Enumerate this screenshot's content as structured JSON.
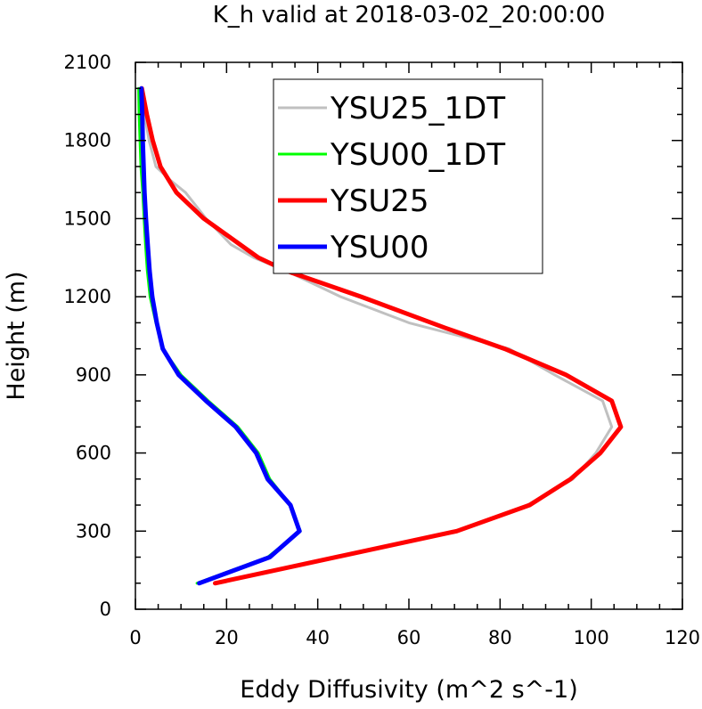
{
  "chart_data": {
    "type": "line",
    "title": "K_h valid at 2018-03-02_20:00:00",
    "xlabel": "Eddy Diffusivity (m^2 s^-1)",
    "ylabel": "Height (m)",
    "xlim": [
      0,
      120
    ],
    "ylim": [
      0,
      2100
    ],
    "xticks": [
      0,
      20,
      40,
      60,
      80,
      100,
      120
    ],
    "yticks": [
      0,
      300,
      600,
      900,
      1200,
      1500,
      1800,
      2100
    ],
    "grid": false,
    "legend_position": "top-right",
    "series": [
      {
        "name": "YSU25_1DT",
        "color": "#c0c0c0",
        "line_width": 3,
        "points": [
          [
            17.5,
            100
          ],
          [
            70.5,
            300
          ],
          [
            86,
            400
          ],
          [
            96,
            500
          ],
          [
            101,
            600
          ],
          [
            104.5,
            700
          ],
          [
            102.5,
            800
          ],
          [
            92,
            900
          ],
          [
            82,
            1000
          ],
          [
            60,
            1100
          ],
          [
            45,
            1200
          ],
          [
            33,
            1300
          ],
          [
            26,
            1350
          ],
          [
            21,
            1400
          ],
          [
            15.5,
            1500
          ],
          [
            11,
            1600
          ],
          [
            7.5,
            1650
          ],
          [
            4.5,
            1700
          ],
          [
            3,
            1800
          ],
          [
            2,
            1900
          ],
          [
            1.5,
            2000
          ]
        ]
      },
      {
        "name": "YSU00_1DT",
        "color": "#00ff00",
        "line_width": 3,
        "points": [
          [
            13.5,
            100
          ],
          [
            29,
            200
          ],
          [
            36.2,
            300
          ],
          [
            34,
            400
          ],
          [
            29.5,
            500
          ],
          [
            27,
            600
          ],
          [
            22.5,
            700
          ],
          [
            16,
            800
          ],
          [
            10,
            900
          ],
          [
            6,
            1000
          ],
          [
            4.5,
            1100
          ],
          [
            3.2,
            1200
          ],
          [
            2.6,
            1300
          ],
          [
            2.2,
            1400
          ],
          [
            1.9,
            1500
          ],
          [
            1.6,
            1600
          ],
          [
            1.2,
            1700
          ],
          [
            1,
            1800
          ],
          [
            0.8,
            1900
          ],
          [
            0.7,
            2000
          ]
        ]
      },
      {
        "name": "YSU25",
        "color": "#ff0000",
        "line_width": 5,
        "points": [
          [
            17.5,
            100
          ],
          [
            70.5,
            300
          ],
          [
            86.5,
            400
          ],
          [
            95.5,
            500
          ],
          [
            102,
            600
          ],
          [
            106.5,
            700
          ],
          [
            104.5,
            800
          ],
          [
            94.5,
            900
          ],
          [
            81,
            1000
          ],
          [
            68,
            1080
          ],
          [
            49.5,
            1200
          ],
          [
            33,
            1300
          ],
          [
            27,
            1350
          ],
          [
            23,
            1400
          ],
          [
            15,
            1500
          ],
          [
            9,
            1600
          ],
          [
            5.5,
            1700
          ],
          [
            3.8,
            1800
          ],
          [
            2.5,
            1900
          ],
          [
            1.4,
            2000
          ]
        ]
      },
      {
        "name": "YSU00",
        "color": "#0000ff",
        "line_width": 5,
        "points": [
          [
            14,
            100
          ],
          [
            29.5,
            200
          ],
          [
            36,
            300
          ],
          [
            34,
            400
          ],
          [
            29,
            500
          ],
          [
            26.5,
            600
          ],
          [
            22,
            700
          ],
          [
            15.5,
            800
          ],
          [
            9.5,
            900
          ],
          [
            6,
            1000
          ],
          [
            4.7,
            1100
          ],
          [
            3.7,
            1200
          ],
          [
            3.1,
            1300
          ],
          [
            2.7,
            1400
          ],
          [
            2.3,
            1500
          ],
          [
            2,
            1600
          ],
          [
            1.8,
            1700
          ],
          [
            1.6,
            1800
          ],
          [
            1.5,
            1900
          ],
          [
            1.3,
            2000
          ]
        ]
      }
    ]
  }
}
